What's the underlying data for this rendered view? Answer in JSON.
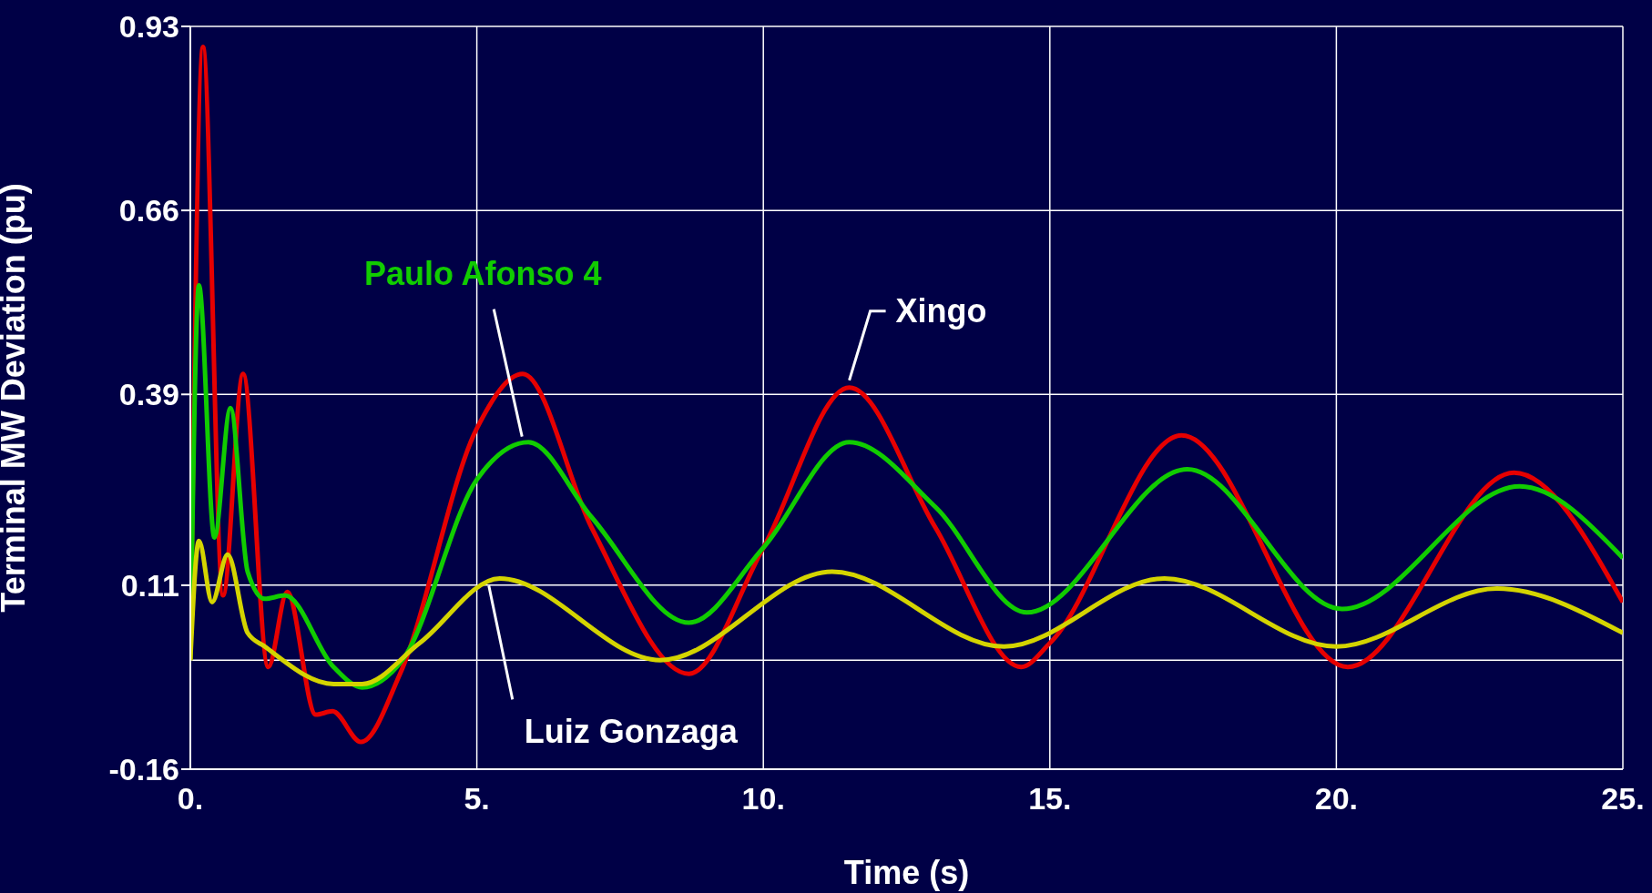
{
  "chart_data": {
    "type": "line",
    "xlabel": "Time (s)",
    "ylabel": "Terminal MW Deviation (pu)",
    "xlim": [
      0,
      25
    ],
    "xticks": [
      {
        "value": 0,
        "label": "0."
      },
      {
        "value": 5,
        "label": "5."
      },
      {
        "value": 10,
        "label": "10."
      },
      {
        "value": 15,
        "label": "15."
      },
      {
        "value": 20,
        "label": "20."
      },
      {
        "value": 25,
        "label": "25."
      }
    ],
    "ylim": [
      -0.16,
      0.93
    ],
    "yticks": [
      -0.16,
      0.11,
      0.39,
      0.66,
      0.93
    ],
    "grid": true,
    "ref_lines": [
      {
        "axis": "y",
        "value": 0,
        "color": "#ffffff"
      }
    ],
    "series": [
      {
        "name": "Xingo",
        "color": "#e60000",
        "x": [
          0,
          0.22,
          0.57,
          0.92,
          1.36,
          1.69,
          2.19,
          2.48,
          2.98,
          3.66,
          5,
          5.8,
          7,
          8.7,
          10,
          11.5,
          13,
          14.5,
          15,
          17.3,
          20.2,
          23.1,
          25
        ],
        "values": [
          0,
          0.9,
          0.095,
          0.42,
          -0.01,
          0.1,
          -0.08,
          -0.075,
          -0.12,
          -0.02,
          0.34,
          0.42,
          0.195,
          -0.02,
          0.165,
          0.4,
          0.195,
          -0.01,
          0.025,
          0.33,
          -0.01,
          0.275,
          0.085
        ]
      },
      {
        "name": "Paulo Afonso 4",
        "color": "#11cc00",
        "x": [
          0,
          0.15,
          0.42,
          0.7,
          1,
          1.3,
          1.65,
          2.5,
          3,
          3.7,
          5,
          5.9,
          7,
          8.7,
          10,
          11.5,
          13,
          14.6,
          17.4,
          20.1,
          23.2,
          25
        ],
        "values": [
          0,
          0.55,
          0.18,
          0.37,
          0.13,
          0.09,
          0.095,
          -0.01,
          -0.04,
          0,
          0.265,
          0.32,
          0.21,
          0.055,
          0.165,
          0.32,
          0.225,
          0.07,
          0.28,
          0.075,
          0.255,
          0.15
        ]
      },
      {
        "name": "Luiz Gonzaga",
        "color": "#d4d400",
        "x": [
          0,
          0.15,
          0.38,
          0.65,
          1,
          1.3,
          2.5,
          3,
          4,
          5.4,
          8.2,
          11.2,
          14.2,
          17,
          20,
          22.8,
          25
        ],
        "values": [
          0,
          0.175,
          0.085,
          0.155,
          0.04,
          0.02,
          -0.035,
          -0.035,
          0.025,
          0.12,
          0,
          0.13,
          0.02,
          0.12,
          0.02,
          0.105,
          0.04
        ]
      }
    ]
  }
}
